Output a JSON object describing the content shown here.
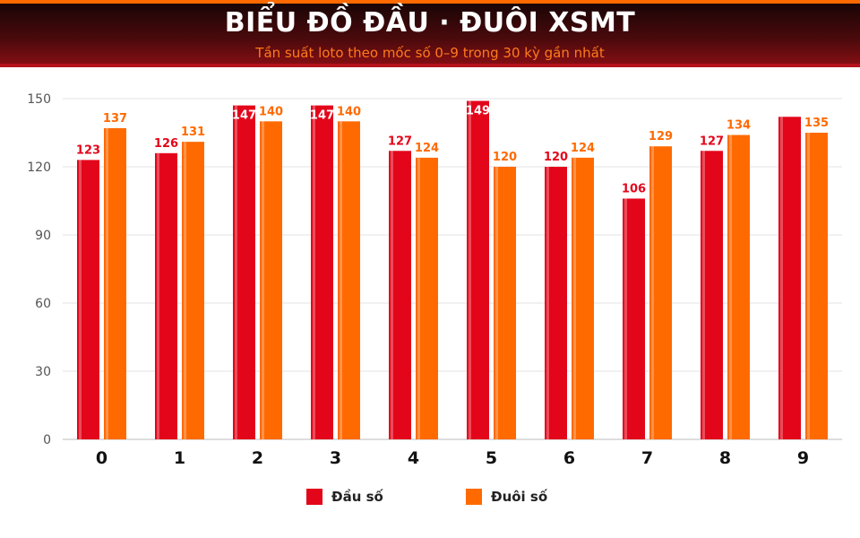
{
  "header": {
    "title": "BIỂU ĐỒ ĐẦU · ĐUÔI XSMT",
    "subtitle": "Tần suất loto theo mốc số 0–9 trong 30 kỳ gần nhất"
  },
  "colors": {
    "dau": "#e3061a",
    "duoi": "#ff6a00",
    "header_dark": "#1a0506",
    "header_accent": "#ff6a00"
  },
  "legend": {
    "dau_label": "Đầu số",
    "duoi_label": "Đuôi số"
  },
  "chart_data": {
    "type": "bar",
    "title": "BIỂU ĐỒ ĐẦU · ĐUÔI XSMT",
    "subtitle": "Tần suất loto theo mốc số 0–9 trong 30 kỳ gần nhất",
    "xlabel": "",
    "ylabel": "",
    "categories": [
      "0",
      "1",
      "2",
      "3",
      "4",
      "5",
      "6",
      "7",
      "8",
      "9"
    ],
    "series": [
      {
        "name": "Đầu số",
        "values": [
          123,
          126,
          147,
          147,
          127,
          149,
          120,
          106,
          127,
          142
        ],
        "labels": [
          "123",
          "126",
          "147",
          "147",
          "127",
          "149",
          "120",
          "106",
          "127",
          ""
        ]
      },
      {
        "name": "Đuôi số",
        "values": [
          137,
          131,
          140,
          140,
          124,
          120,
          124,
          129,
          134,
          135
        ],
        "labels": [
          "137",
          "131",
          "140",
          "140",
          "124",
          "120",
          "124",
          "129",
          "134",
          "135"
        ]
      }
    ],
    "yticks": [
      "0",
      "30",
      "60",
      "90",
      "120",
      "150"
    ],
    "ylim": [
      0,
      150
    ],
    "grid": true,
    "legend_position": "bottom-center"
  }
}
